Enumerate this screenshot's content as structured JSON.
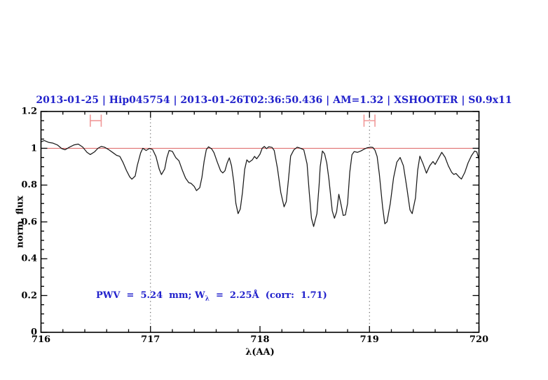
{
  "title": {
    "text": "2013-01-25 | Hip045754 | 2013-01-26T02:36:50.436 | AM=1.32 | XSHOOTER | S0.9x11",
    "color": "#2222cc"
  },
  "axes": {
    "xlabel": "λ(AA)",
    "ylabel": "norm. flux"
  },
  "annotation": {
    "prefix": "PWV  =  5.24  mm; W",
    "subscript": "λ",
    "suffix": "  =  2.25Å  (corr:  1.71)",
    "color": "#2222cc"
  },
  "colors": {
    "title_blue": "#2222cc",
    "curve": "#1a1a1a",
    "continuum_red": "#dd6666",
    "marker_salmon": "#f09999",
    "dotted_line": "#444444",
    "axis": "#000000"
  },
  "chart_data": {
    "type": "line",
    "title": "2013-01-25 | Hip045754 | 2013-01-26T02:36:50.436 | AM=1.32 | XSHOOTER | S0.9x11",
    "xlabel": "λ(AA)",
    "ylabel": "norm. flux",
    "xlim": [
      716,
      720
    ],
    "ylim": [
      0,
      1.2
    ],
    "xticks": [
      716,
      717,
      718,
      719,
      720
    ],
    "xtick_labels": [
      "716",
      "717",
      "718",
      "719",
      "720"
    ],
    "yticks": [
      0,
      0.2,
      0.4,
      0.6,
      0.8,
      1,
      1.2
    ],
    "ytick_labels": [
      "0",
      "0.2",
      "0.4",
      "0.6",
      "0.8",
      "1",
      "1.2"
    ],
    "x_minor_step": 0.2,
    "y_minor_step": 0.05,
    "grid": false,
    "legend": false,
    "continuum_line": {
      "y": 1.0,
      "color": "#dd6666"
    },
    "vlines": {
      "x": [
        717,
        719
      ],
      "style": "dotted",
      "color": "#444444"
    },
    "range_markers": [
      {
        "x_center": 716.5,
        "x_halfwidth": 0.05,
        "y": 1.15,
        "cap_halfheight": 0.033,
        "color": "#f09999"
      },
      {
        "x_center": 719.0,
        "x_halfwidth": 0.05,
        "y": 1.15,
        "cap_halfheight": 0.033,
        "color": "#f09999"
      }
    ],
    "annotation": {
      "text": "PWV = 5.24 mm; W_λ = 2.25Å (corr: 1.71)",
      "x": 716.5,
      "y": 0.19,
      "color": "#2222cc"
    },
    "series": [
      {
        "name": "normalized telluric spectrum",
        "type": "line",
        "color": "#1a1a1a",
        "points": [
          [
            716.0,
            1.035
          ],
          [
            716.03,
            1.042
          ],
          [
            716.07,
            1.032
          ],
          [
            716.11,
            1.028
          ],
          [
            716.15,
            1.018
          ],
          [
            716.19,
            0.998
          ],
          [
            716.22,
            0.992
          ],
          [
            716.26,
            1.006
          ],
          [
            716.3,
            1.018
          ],
          [
            716.34,
            1.023
          ],
          [
            716.38,
            1.007
          ],
          [
            716.42,
            0.978
          ],
          [
            716.45,
            0.966
          ],
          [
            716.49,
            0.981
          ],
          [
            716.52,
            1.0
          ],
          [
            716.55,
            1.01
          ],
          [
            716.58,
            1.006
          ],
          [
            716.62,
            0.992
          ],
          [
            716.66,
            0.975
          ],
          [
            716.69,
            0.962
          ],
          [
            716.72,
            0.956
          ],
          [
            716.75,
            0.922
          ],
          [
            716.78,
            0.88
          ],
          [
            716.81,
            0.845
          ],
          [
            716.83,
            0.832
          ],
          [
            716.86,
            0.849
          ],
          [
            716.88,
            0.908
          ],
          [
            716.91,
            0.975
          ],
          [
            716.93,
            1.0
          ],
          [
            716.96,
            0.988
          ],
          [
            716.99,
            0.999
          ],
          [
            717.02,
            0.993
          ],
          [
            717.05,
            0.955
          ],
          [
            717.08,
            0.886
          ],
          [
            717.1,
            0.857
          ],
          [
            717.13,
            0.888
          ],
          [
            717.15,
            0.95
          ],
          [
            717.17,
            0.988
          ],
          [
            717.2,
            0.983
          ],
          [
            717.23,
            0.95
          ],
          [
            717.26,
            0.932
          ],
          [
            717.29,
            0.882
          ],
          [
            717.32,
            0.838
          ],
          [
            717.35,
            0.813
          ],
          [
            717.37,
            0.81
          ],
          [
            717.4,
            0.792
          ],
          [
            717.42,
            0.77
          ],
          [
            717.45,
            0.786
          ],
          [
            717.47,
            0.843
          ],
          [
            717.49,
            0.93
          ],
          [
            717.51,
            0.993
          ],
          [
            717.53,
            1.008
          ],
          [
            717.56,
            0.996
          ],
          [
            717.58,
            0.976
          ],
          [
            717.61,
            0.925
          ],
          [
            717.64,
            0.878
          ],
          [
            717.66,
            0.866
          ],
          [
            717.68,
            0.878
          ],
          [
            717.7,
            0.92
          ],
          [
            717.72,
            0.948
          ],
          [
            717.74,
            0.905
          ],
          [
            717.76,
            0.82
          ],
          [
            717.78,
            0.7
          ],
          [
            717.8,
            0.645
          ],
          [
            717.82,
            0.67
          ],
          [
            717.84,
            0.76
          ],
          [
            717.86,
            0.885
          ],
          [
            717.88,
            0.937
          ],
          [
            717.9,
            0.924
          ],
          [
            717.93,
            0.937
          ],
          [
            717.95,
            0.956
          ],
          [
            717.97,
            0.943
          ],
          [
            718.0,
            0.968
          ],
          [
            718.02,
            1.0
          ],
          [
            718.04,
            1.01
          ],
          [
            718.06,
            0.998
          ],
          [
            718.08,
            1.008
          ],
          [
            718.11,
            1.005
          ],
          [
            718.13,
            0.988
          ],
          [
            718.16,
            0.89
          ],
          [
            718.19,
            0.76
          ],
          [
            718.22,
            0.682
          ],
          [
            718.24,
            0.71
          ],
          [
            718.26,
            0.83
          ],
          [
            718.28,
            0.958
          ],
          [
            718.31,
            0.992
          ],
          [
            718.34,
            1.006
          ],
          [
            718.37,
            1.0
          ],
          [
            718.4,
            0.992
          ],
          [
            718.43,
            0.915
          ],
          [
            718.45,
            0.76
          ],
          [
            718.47,
            0.62
          ],
          [
            718.49,
            0.575
          ],
          [
            718.52,
            0.645
          ],
          [
            718.54,
            0.8
          ],
          [
            718.55,
            0.9
          ],
          [
            718.57,
            0.985
          ],
          [
            718.59,
            0.97
          ],
          [
            718.61,
            0.92
          ],
          [
            718.63,
            0.83
          ],
          [
            718.66,
            0.66
          ],
          [
            718.68,
            0.62
          ],
          [
            718.7,
            0.655
          ],
          [
            718.72,
            0.75
          ],
          [
            718.74,
            0.695
          ],
          [
            718.76,
            0.635
          ],
          [
            718.78,
            0.638
          ],
          [
            718.8,
            0.7
          ],
          [
            718.82,
            0.87
          ],
          [
            718.84,
            0.965
          ],
          [
            718.86,
            0.982
          ],
          [
            718.89,
            0.978
          ],
          [
            718.92,
            0.985
          ],
          [
            718.95,
            0.995
          ],
          [
            718.98,
            1.003
          ],
          [
            719.01,
            1.006
          ],
          [
            719.03,
            1.005
          ],
          [
            719.05,
            0.99
          ],
          [
            719.07,
            0.955
          ],
          [
            719.09,
            0.86
          ],
          [
            719.12,
            0.68
          ],
          [
            719.14,
            0.59
          ],
          [
            719.16,
            0.6
          ],
          [
            719.19,
            0.7
          ],
          [
            719.22,
            0.84
          ],
          [
            719.25,
            0.925
          ],
          [
            719.28,
            0.95
          ],
          [
            719.31,
            0.905
          ],
          [
            719.34,
            0.79
          ],
          [
            719.37,
            0.665
          ],
          [
            719.39,
            0.645
          ],
          [
            719.42,
            0.73
          ],
          [
            719.44,
            0.88
          ],
          [
            719.46,
            0.957
          ],
          [
            719.49,
            0.915
          ],
          [
            719.52,
            0.865
          ],
          [
            719.55,
            0.905
          ],
          [
            719.58,
            0.928
          ],
          [
            719.6,
            0.912
          ],
          [
            719.63,
            0.945
          ],
          [
            719.66,
            0.978
          ],
          [
            719.69,
            0.952
          ],
          [
            719.72,
            0.905
          ],
          [
            719.75,
            0.87
          ],
          [
            719.77,
            0.858
          ],
          [
            719.79,
            0.863
          ],
          [
            719.82,
            0.843
          ],
          [
            719.84,
            0.833
          ],
          [
            719.87,
            0.868
          ],
          [
            719.9,
            0.92
          ],
          [
            719.93,
            0.958
          ],
          [
            719.96,
            0.985
          ],
          [
            719.98,
            0.98
          ],
          [
            720.0,
            0.94
          ]
        ]
      }
    ]
  }
}
